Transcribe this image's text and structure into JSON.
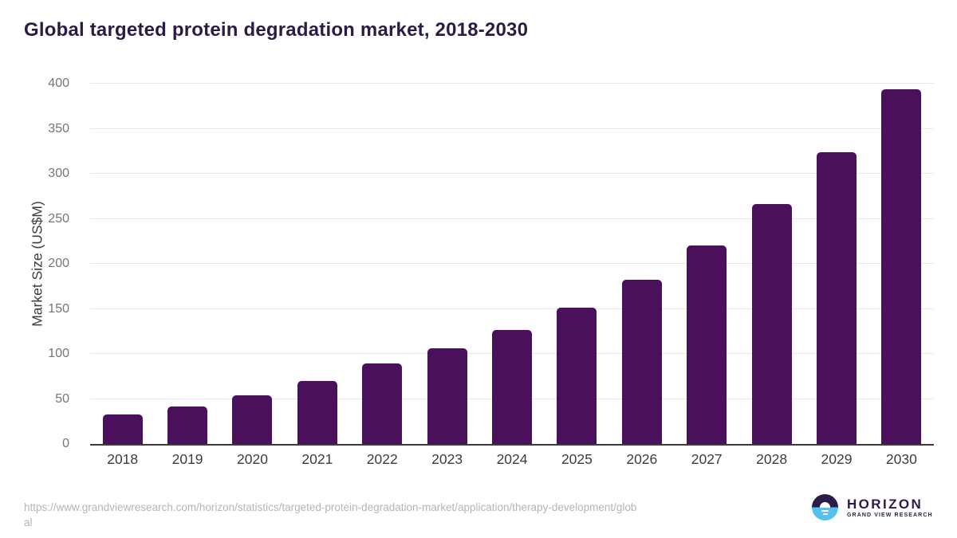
{
  "chart_data": {
    "type": "bar",
    "title": "Global targeted protein degradation market, 2018-2030",
    "categories": [
      "2018",
      "2019",
      "2020",
      "2021",
      "2022",
      "2023",
      "2024",
      "2025",
      "2026",
      "2027",
      "2028",
      "2029",
      "2030"
    ],
    "values": [
      33,
      42,
      54,
      70,
      89,
      106,
      127,
      151,
      182,
      220,
      266,
      324,
      394
    ],
    "xlabel": "",
    "ylabel": "Market Size (US$M)",
    "ylim": [
      0,
      400
    ],
    "ytick_interval": 50,
    "yticks": [
      0,
      50,
      100,
      150,
      200,
      250,
      300,
      350,
      400
    ],
    "grid": true,
    "legend": "none",
    "bar_color": "#4a105c"
  },
  "footer": {
    "source_url_lines": [
      "https://www.grandviewresearch.com/horizon/statistics/targeted-protein-degradation-market/application/therapy-development/glob",
      "al"
    ],
    "source_url_full": "https://www.grandviewresearch.com/horizon/statistics/targeted-protein-degradation-market/application/therapy-development/global",
    "logo": {
      "brand": "HORIZON",
      "subbrand": "GRAND VIEW RESEARCH"
    }
  },
  "colors": {
    "bar": "#4a105c",
    "title_text": "#2e1a47",
    "axis_line": "#3b3b3b",
    "gridline": "#e8e8e8",
    "y_tick_text": "#757575",
    "x_tick_text": "#3d3d3d",
    "url_text": "#b5b5b5",
    "logo_dark": "#2d1b4a",
    "logo_blue": "#56c0ee"
  }
}
